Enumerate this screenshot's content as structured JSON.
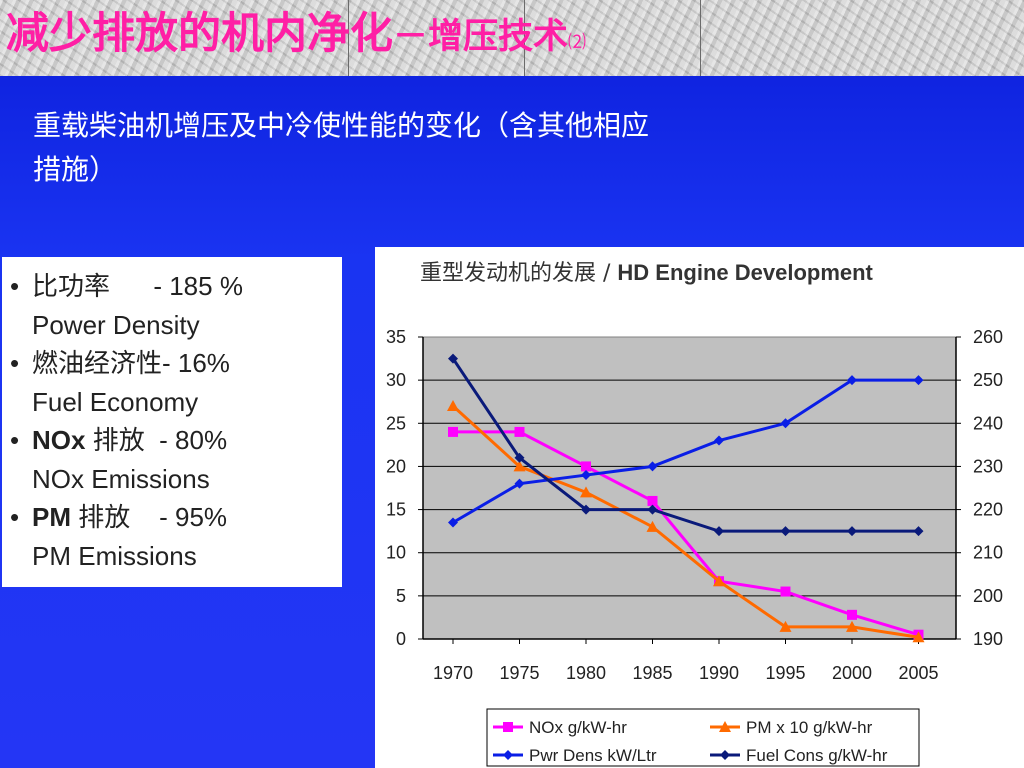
{
  "slide": {
    "title_main": "减少排放的机内净化",
    "title_sub": "－增压技术",
    "title_num": "⑵",
    "subtitle": "重载柴油机增压及中冷使性能的变化（含其他相应措施）"
  },
  "bullets": [
    {
      "head": "比功率      - 185 %",
      "head_bold": "",
      "sub": "Power Density"
    },
    {
      "head": "燃油经济性- 16%",
      "head_bold": "",
      "sub": "Fuel Economy"
    },
    {
      "head": " 排放  - 80%",
      "head_bold": "NOx",
      "sub": "NOx Emissions"
    },
    {
      "head": " 排放    - 95%",
      "head_bold": "PM",
      "sub": "PM Emissions"
    }
  ],
  "chart_data": {
    "type": "line",
    "title_cn": "重型发动机的发展 / ",
    "title_en": "HD Engine Development",
    "x": [
      1970,
      1975,
      1980,
      1985,
      1990,
      1995,
      2000,
      2005
    ],
    "x_ticks": [
      "1970",
      "1975",
      "1980",
      "1985",
      "1990",
      "1995",
      "2000",
      "2005"
    ],
    "ylim": [
      0,
      35
    ],
    "y_ticks": [
      "0",
      "5",
      "10",
      "15",
      "20",
      "25",
      "30",
      "35"
    ],
    "y2lim": [
      190,
      260
    ],
    "y2_ticks": [
      "190",
      "200",
      "210",
      "220",
      "230",
      "240",
      "250",
      "260"
    ],
    "grid": true,
    "legend_position": "bottom",
    "series": [
      {
        "name": "NOx g/kW-hr",
        "axis": "left",
        "color": "#ff00ff",
        "marker": "square",
        "values": [
          24,
          24,
          20,
          16,
          6.7,
          5.5,
          2.8,
          0.5
        ]
      },
      {
        "name": "PM x 10 g/kW-hr",
        "axis": "left",
        "color": "#ff6a00",
        "marker": "triangle",
        "values": [
          27,
          20,
          17,
          13,
          6.7,
          1.4,
          1.4,
          0.2
        ]
      },
      {
        "name": "Pwr Dens kW/Ltr",
        "axis": "left",
        "color": "#0a1ee6",
        "marker": "diamond",
        "values": [
          13.5,
          18,
          19,
          20,
          23,
          25,
          30,
          30
        ]
      },
      {
        "name": "Fuel Cons g/kW-hr",
        "axis": "right",
        "color": "#0a1a7a",
        "marker": "diamond",
        "values": [
          255,
          232,
          220,
          220,
          215,
          215,
          215,
          215
        ]
      }
    ]
  }
}
